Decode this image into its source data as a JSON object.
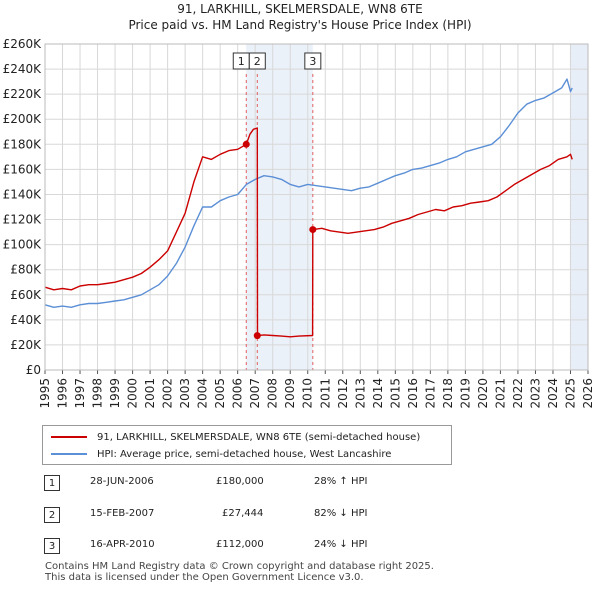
{
  "title": "91, LARKHILL, SKELMERSDALE, WN8 6TE",
  "subtitle": "Price paid vs. HM Land Registry's House Price Index (HPI)",
  "colors": {
    "property": "#cc0000",
    "hpi": "#5b8fd6",
    "future": "#e8eef8"
  },
  "legend": {
    "property": "91, LARKHILL, SKELMERSDALE, WN8 6TE (semi-detached house)",
    "hpi": "HPI: Average price, semi-detached house, West Lancashire"
  },
  "transactions": [
    {
      "num": "1",
      "date": "28-JUN-2006",
      "price": "£180,000",
      "hpi": "28% ↑ HPI"
    },
    {
      "num": "2",
      "date": "15-FEB-2007",
      "price": "£27,444",
      "hpi": "82% ↓ HPI"
    },
    {
      "num": "3",
      "date": "16-APR-2010",
      "price": "£112,000",
      "hpi": "24% ↓ HPI"
    }
  ],
  "footer": {
    "line1": "Contains HM Land Registry data © Crown copyright and database right 2025.",
    "line2": "This data is licensed under the Open Government Licence v3.0."
  },
  "chart_data": {
    "type": "line",
    "xlim": [
      1995,
      2026
    ],
    "ylim": [
      0,
      260000
    ],
    "x_ticks": [
      1995,
      1996,
      1997,
      1998,
      1999,
      2000,
      2001,
      2002,
      2003,
      2004,
      2005,
      2006,
      2007,
      2008,
      2009,
      2010,
      2011,
      2012,
      2013,
      2014,
      2015,
      2016,
      2017,
      2018,
      2019,
      2020,
      2021,
      2022,
      2023,
      2024,
      2025,
      2026
    ],
    "y_ticks": [
      {
        "v": 0,
        "label": "£0"
      },
      {
        "v": 20000,
        "label": "£20K"
      },
      {
        "v": 40000,
        "label": "£40K"
      },
      {
        "v": 60000,
        "label": "£60K"
      },
      {
        "v": 80000,
        "label": "£80K"
      },
      {
        "v": 100000,
        "label": "£100K"
      },
      {
        "v": 120000,
        "label": "£120K"
      },
      {
        "v": 140000,
        "label": "£140K"
      },
      {
        "v": 160000,
        "label": "£160K"
      },
      {
        "v": 180000,
        "label": "£180K"
      },
      {
        "v": 200000,
        "label": "£200K"
      },
      {
        "v": 220000,
        "label": "£220K"
      },
      {
        "v": 240000,
        "label": "£240K"
      },
      {
        "v": 260000,
        "label": "£260K"
      }
    ],
    "future_from": 2025.0,
    "series": [
      {
        "name": "91, LARKHILL, SKELMERSDALE, WN8 6TE (semi-detached house)",
        "x": [
          1995,
          1995.5,
          1996,
          1996.5,
          1997,
          1997.5,
          1998,
          1998.5,
          1999,
          1999.5,
          2000,
          2000.5,
          2001,
          2001.5,
          2002,
          2002.5,
          2003,
          2003.5,
          2004,
          2004.5,
          2005,
          2005.5,
          2006,
          2006.49,
          2006.7,
          2006.9,
          2007.12,
          2007.13,
          2007.5,
          2008,
          2008.5,
          2009,
          2009.5,
          2010.28,
          2010.29,
          2010.8,
          2011.3,
          2011.8,
          2012.3,
          2012.8,
          2013.3,
          2013.8,
          2014.3,
          2014.8,
          2015.3,
          2015.8,
          2016.3,
          2016.8,
          2017.3,
          2017.8,
          2018.3,
          2018.8,
          2019.3,
          2019.8,
          2020.3,
          2020.8,
          2021.3,
          2021.8,
          2022.3,
          2022.8,
          2023.3,
          2023.8,
          2024.3,
          2024.8,
          2025.0,
          2025.1
        ],
        "values": [
          66000,
          64000,
          65000,
          64000,
          67000,
          68000,
          68000,
          69000,
          70000,
          72000,
          74000,
          77000,
          82000,
          88000,
          95000,
          110000,
          125000,
          150000,
          170000,
          168000,
          172000,
          175000,
          176000,
          180000,
          188000,
          192000,
          193000,
          27444,
          28000,
          27500,
          27000,
          26500,
          27000,
          27500,
          112000,
          113000,
          111000,
          110000,
          109000,
          110000,
          111000,
          112000,
          114000,
          117000,
          119000,
          121000,
          124000,
          126000,
          128000,
          127000,
          130000,
          131000,
          133000,
          134000,
          135000,
          138000,
          143000,
          148000,
          152000,
          156000,
          160000,
          163000,
          168000,
          170000,
          172000,
          168000
        ]
      },
      {
        "name": "HPI: Average price, semi-detached house, West Lancashire",
        "x": [
          1995,
          1995.5,
          1996,
          1996.5,
          1997,
          1997.5,
          1998,
          1998.5,
          1999,
          1999.5,
          2000,
          2000.5,
          2001,
          2001.5,
          2002,
          2002.5,
          2003,
          2003.5,
          2004,
          2004.5,
          2005,
          2005.5,
          2006,
          2006.5,
          2007,
          2007.5,
          2008,
          2008.5,
          2009,
          2009.5,
          2010,
          2010.5,
          2011,
          2011.5,
          2012,
          2012.5,
          2013,
          2013.5,
          2014,
          2014.5,
          2015,
          2015.5,
          2016,
          2016.5,
          2017,
          2017.5,
          2018,
          2018.5,
          2019,
          2019.5,
          2020,
          2020.5,
          2021,
          2021.5,
          2022,
          2022.5,
          2023,
          2023.5,
          2024,
          2024.5,
          2024.8,
          2025.0,
          2025.1
        ],
        "values": [
          52000,
          50000,
          51000,
          50000,
          52000,
          53000,
          53000,
          54000,
          55000,
          56000,
          58000,
          60000,
          64000,
          68000,
          75000,
          85000,
          98000,
          115000,
          130000,
          130000,
          135000,
          138000,
          140000,
          148000,
          152000,
          155000,
          154000,
          152000,
          148000,
          146000,
          148000,
          147000,
          146000,
          145000,
          144000,
          143000,
          145000,
          146000,
          149000,
          152000,
          155000,
          157000,
          160000,
          161000,
          163000,
          165000,
          168000,
          170000,
          174000,
          176000,
          178000,
          180000,
          186000,
          195000,
          205000,
          212000,
          215000,
          217000,
          221000,
          225000,
          232000,
          222000,
          225000
        ]
      }
    ],
    "markers": [
      {
        "label": "1",
        "x": 2006.49,
        "y": 180000
      },
      {
        "label": "2",
        "x": 2007.12,
        "y": 27444
      },
      {
        "label": "3",
        "x": 2010.29,
        "y": 112000
      }
    ]
  }
}
